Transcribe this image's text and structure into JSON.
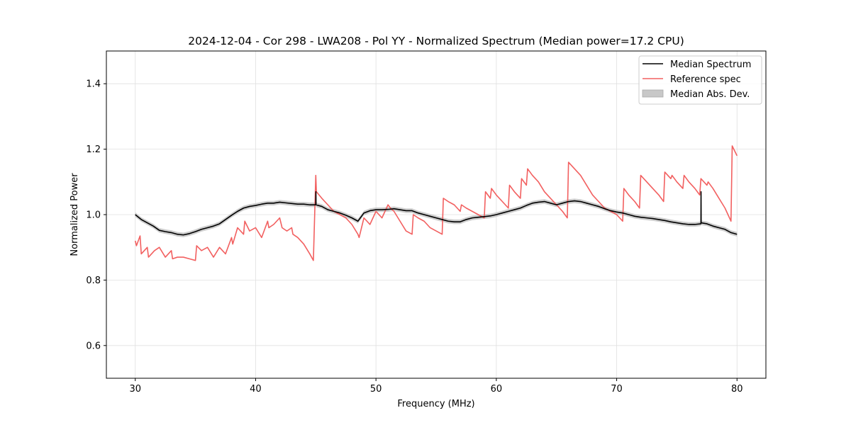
{
  "chart_data": {
    "type": "line",
    "title": "2024-12-04 - Cor 298 - LWA208 - Pol YY - Normalized Spectrum (Median power=17.2 CPU)",
    "xlabel": "Frequency (MHz)",
    "ylabel": "Normalized Power",
    "xlim": [
      27.6,
      82.4
    ],
    "ylim": [
      0.5,
      1.5
    ],
    "xticks": [
      30,
      40,
      50,
      60,
      70,
      80
    ],
    "yticks": [
      0.6,
      0.8,
      1.0,
      1.2,
      1.4
    ],
    "xtick_labels": [
      "30",
      "40",
      "50",
      "60",
      "70",
      "80"
    ],
    "ytick_labels": [
      "0.6",
      "0.8",
      "1.0",
      "1.2",
      "1.4"
    ],
    "grid": true,
    "legend_position": "top-right",
    "legend": [
      "Median Spectrum",
      "Reference spec",
      "Median Abs. Dev."
    ],
    "series": [
      {
        "name": "Median Spectrum",
        "color": "#000000",
        "x": [
          30.0,
          30.5,
          31.0,
          31.5,
          32.0,
          32.5,
          33.0,
          33.5,
          34.0,
          34.5,
          35.0,
          35.5,
          36.0,
          36.5,
          37.0,
          37.5,
          38.0,
          38.5,
          39.0,
          39.5,
          40.0,
          40.5,
          41.0,
          41.5,
          42.0,
          42.5,
          43.0,
          43.5,
          44.0,
          44.5,
          45.0,
          45.01,
          45.02,
          45.5,
          46.0,
          46.5,
          47.0,
          47.5,
          48.0,
          48.5,
          49.0,
          49.5,
          50.0,
          50.5,
          51.0,
          51.5,
          52.0,
          52.5,
          53.0,
          53.5,
          54.0,
          54.5,
          55.0,
          55.5,
          56.0,
          56.5,
          57.0,
          57.5,
          58.0,
          58.5,
          59.0,
          59.5,
          60.0,
          60.5,
          61.0,
          61.5,
          62.0,
          62.5,
          63.0,
          63.5,
          64.0,
          64.5,
          65.0,
          65.5,
          66.0,
          66.5,
          67.0,
          67.5,
          68.0,
          68.5,
          69.0,
          69.5,
          70.0,
          70.5,
          71.0,
          71.5,
          72.0,
          72.5,
          73.0,
          73.5,
          74.0,
          74.5,
          75.0,
          75.5,
          76.0,
          76.5,
          77.0,
          77.01,
          77.02,
          77.5,
          78.0,
          78.5,
          79.0,
          79.5,
          80.0
        ],
        "values": [
          1.0,
          0.985,
          0.975,
          0.965,
          0.952,
          0.948,
          0.945,
          0.94,
          0.938,
          0.942,
          0.948,
          0.955,
          0.96,
          0.965,
          0.972,
          0.985,
          0.998,
          1.01,
          1.02,
          1.025,
          1.028,
          1.032,
          1.035,
          1.035,
          1.038,
          1.036,
          1.034,
          1.032,
          1.032,
          1.03,
          1.03,
          1.07,
          1.03,
          1.025,
          1.015,
          1.01,
          1.005,
          0.998,
          0.99,
          0.98,
          1.005,
          1.012,
          1.015,
          1.015,
          1.016,
          1.018,
          1.015,
          1.012,
          1.012,
          1.005,
          1.0,
          0.995,
          0.99,
          0.985,
          0.98,
          0.978,
          0.978,
          0.985,
          0.99,
          0.992,
          0.994,
          0.996,
          1.0,
          1.005,
          1.01,
          1.015,
          1.02,
          1.028,
          1.035,
          1.038,
          1.04,
          1.035,
          1.03,
          1.035,
          1.04,
          1.042,
          1.04,
          1.035,
          1.03,
          1.025,
          1.018,
          1.012,
          1.008,
          1.005,
          1.0,
          0.995,
          0.992,
          0.99,
          0.988,
          0.985,
          0.982,
          0.978,
          0.975,
          0.972,
          0.97,
          0.97,
          0.972,
          1.07,
          0.975,
          0.972,
          0.965,
          0.96,
          0.955,
          0.945,
          0.94
        ]
      },
      {
        "name": "Reference spec",
        "color": "#f26060",
        "x": [
          30.0,
          30.1,
          30.4,
          30.5,
          31.0,
          31.1,
          31.6,
          32.0,
          32.5,
          33.0,
          33.1,
          33.5,
          34.0,
          34.5,
          35.0,
          35.1,
          35.5,
          36.0,
          36.5,
          37.0,
          37.5,
          38.0,
          38.1,
          38.5,
          39.0,
          39.1,
          39.5,
          40.0,
          40.5,
          41.0,
          41.1,
          41.5,
          42.0,
          42.2,
          42.6,
          43.0,
          43.1,
          43.5,
          44.0,
          44.5,
          44.8,
          45.0,
          45.05,
          45.5,
          46.0,
          46.5,
          47.0,
          47.5,
          48.0,
          48.5,
          48.6,
          49.0,
          49.5,
          50.0,
          50.5,
          51.0,
          51.2,
          51.5,
          52.0,
          52.5,
          53.0,
          53.1,
          53.5,
          54.0,
          54.5,
          55.0,
          55.5,
          55.6,
          56.0,
          56.5,
          57.0,
          57.1,
          57.5,
          58.0,
          58.5,
          59.0,
          59.1,
          59.5,
          59.6,
          60.0,
          60.5,
          61.0,
          61.1,
          61.5,
          62.0,
          62.1,
          62.5,
          62.6,
          63.0,
          63.5,
          64.0,
          64.5,
          65.0,
          65.5,
          65.9,
          66.0,
          66.5,
          67.0,
          67.5,
          68.0,
          68.5,
          69.0,
          69.5,
          70.0,
          70.5,
          70.6,
          71.0,
          71.5,
          71.9,
          72.0,
          72.5,
          73.0,
          73.5,
          73.9,
          74.0,
          74.5,
          74.6,
          75.0,
          75.5,
          75.6,
          76.0,
          76.5,
          76.9,
          77.0,
          77.5,
          77.6,
          78.0,
          78.5,
          79.0,
          79.5,
          79.6,
          80.0
        ],
        "values": [
          0.92,
          0.905,
          0.935,
          0.88,
          0.9,
          0.87,
          0.89,
          0.9,
          0.87,
          0.89,
          0.865,
          0.87,
          0.87,
          0.865,
          0.86,
          0.905,
          0.89,
          0.9,
          0.87,
          0.9,
          0.88,
          0.93,
          0.91,
          0.96,
          0.94,
          0.98,
          0.95,
          0.96,
          0.93,
          0.98,
          0.96,
          0.97,
          0.99,
          0.96,
          0.95,
          0.96,
          0.94,
          0.93,
          0.91,
          0.88,
          0.86,
          1.12,
          1.07,
          1.05,
          1.03,
          1.01,
          1.0,
          0.99,
          0.97,
          0.94,
          0.93,
          0.99,
          0.97,
          1.01,
          0.99,
          1.03,
          1.02,
          1.01,
          0.98,
          0.95,
          0.94,
          1.0,
          0.99,
          0.98,
          0.96,
          0.95,
          0.94,
          1.05,
          1.04,
          1.03,
          1.01,
          1.03,
          1.02,
          1.01,
          1.0,
          0.99,
          1.07,
          1.05,
          1.08,
          1.06,
          1.04,
          1.02,
          1.09,
          1.07,
          1.05,
          1.11,
          1.09,
          1.14,
          1.12,
          1.1,
          1.07,
          1.05,
          1.03,
          1.01,
          0.99,
          1.16,
          1.14,
          1.12,
          1.09,
          1.06,
          1.04,
          1.02,
          1.01,
          1.0,
          0.98,
          1.08,
          1.06,
          1.04,
          1.02,
          1.12,
          1.1,
          1.08,
          1.06,
          1.04,
          1.13,
          1.11,
          1.12,
          1.1,
          1.08,
          1.12,
          1.1,
          1.08,
          1.06,
          1.11,
          1.09,
          1.1,
          1.08,
          1.05,
          1.02,
          0.98,
          1.21,
          1.18
        ]
      }
    ],
    "mad_band": {
      "name": "Median Abs. Dev.",
      "color": "#c8c8c8",
      "half_width": 0.007
    }
  }
}
